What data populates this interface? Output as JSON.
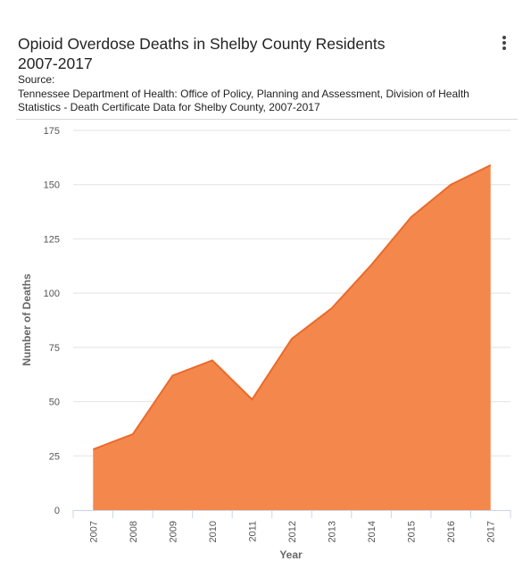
{
  "header": {
    "title_line1": "Opioid Overdose Deaths in Shelby County Residents",
    "title_line2": "2007-2017",
    "source_label": "Source:",
    "source_text": "Tennessee Department of Health: Office of Policy, Planning and Assessment, Division of Health Statistics - Death Certificate Data for Shelby County, 2007-2017",
    "menu_icon": "kebab-menu-icon"
  },
  "colors": {
    "area_fill": "#f4884c",
    "area_line": "#ea6a2b",
    "grid": "#e2e2e2"
  },
  "chart_data": {
    "type": "area",
    "title": "Opioid Overdose Deaths in Shelby County Residents 2007-2017",
    "xlabel": "Year",
    "ylabel": "Number of Deaths",
    "categories": [
      "2007",
      "2008",
      "2009",
      "2010",
      "2011",
      "2012",
      "2013",
      "2014",
      "2015",
      "2016",
      "2017"
    ],
    "values": [
      28,
      35,
      62,
      69,
      51,
      79,
      93,
      113,
      135,
      150,
      159
    ],
    "ylim": [
      0,
      175
    ],
    "yticks": [
      0,
      25,
      50,
      75,
      100,
      125,
      150,
      175
    ],
    "grid": true,
    "legend": false
  }
}
